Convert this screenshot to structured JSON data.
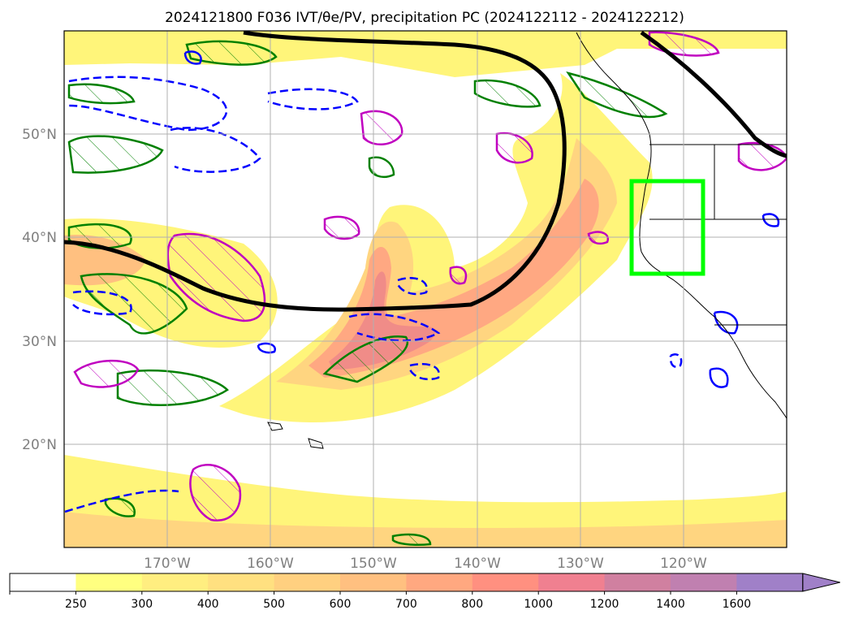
{
  "title": "2024121800 F036 IVT/θe/PV, precipitation PC (2024122112 - 2024122212)",
  "map": {
    "lon_range": [
      -180,
      -110
    ],
    "lat_range": [
      10,
      60
    ],
    "grid": true,
    "lat_ticks": [
      {
        "value": 20,
        "label": "20°N"
      },
      {
        "value": 30,
        "label": "30°N"
      },
      {
        "value": 40,
        "label": "40°N"
      },
      {
        "value": 50,
        "label": "50°N"
      }
    ],
    "lon_ticks": [
      {
        "value": -170,
        "label": "170°W"
      },
      {
        "value": -160,
        "label": "160°W"
      },
      {
        "value": -150,
        "label": "150°W"
      },
      {
        "value": -140,
        "label": "140°W"
      },
      {
        "value": -130,
        "label": "130°W"
      },
      {
        "value": -120,
        "label": "120°W"
      }
    ],
    "highlight_box": {
      "color": "#00ff00",
      "lon": [
        -125,
        -118
      ],
      "lat": [
        36.5,
        45.5
      ]
    },
    "contour_colors": {
      "theta_e": "#000000",
      "green_contours": "#008000",
      "blue_dashed": "#0000ff",
      "magenta_contours": "#c000c0",
      "coastline": "#000000"
    }
  },
  "colorbar": {
    "extend": "max",
    "colors": [
      "#ffffff",
      "#ffff80",
      "#ffee80",
      "#ffe080",
      "#ffd080",
      "#ffc080",
      "#ffa880",
      "#ff9080",
      "#f08090",
      "#d080a0",
      "#c080b0",
      "#a080c8"
    ],
    "ticks": [
      "250",
      "300",
      "400",
      "500",
      "600",
      "700",
      "800",
      "1000",
      "1200",
      "1400",
      "1600"
    ]
  }
}
